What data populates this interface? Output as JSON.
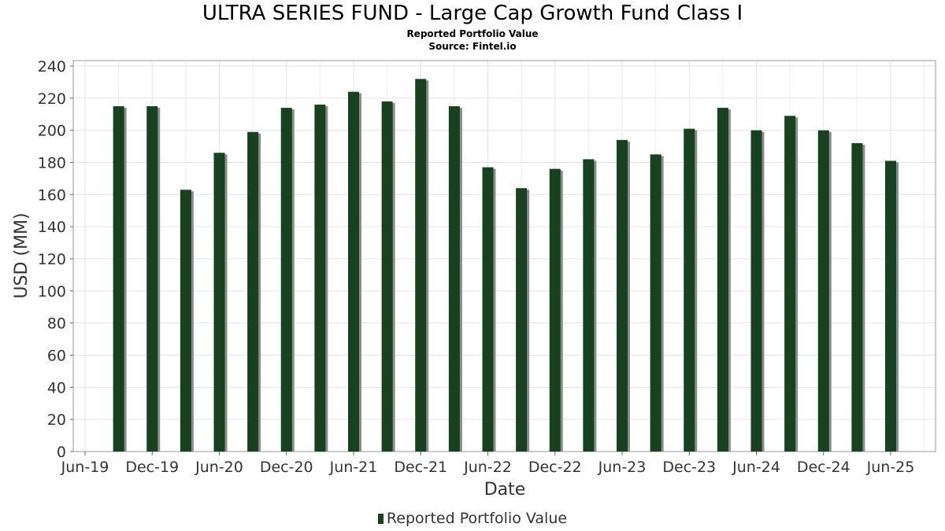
{
  "chart_data": {
    "type": "bar",
    "title": "ULTRA SERIES FUND - Large Cap Growth Fund Class I",
    "subtitle": "Reported Portfolio Value",
    "source": "Source: Fintel.io",
    "xlabel": "Date",
    "ylabel": "USD (MM)",
    "ylim": [
      0,
      240
    ],
    "yticks": [
      0,
      20,
      40,
      60,
      80,
      100,
      120,
      140,
      160,
      180,
      200,
      220,
      240
    ],
    "xticks": [
      "Jun-19",
      "Dec-19",
      "Jun-20",
      "Dec-20",
      "Jun-21",
      "Dec-21",
      "Jun-22",
      "Dec-22",
      "Jun-23",
      "Dec-23",
      "Jun-24",
      "Dec-24",
      "Jun-25"
    ],
    "grid": true,
    "legend_position": "bottom",
    "series": [
      {
        "name": "Reported Portfolio Value",
        "color": "#17411f",
        "x": [
          "2019-09-30",
          "2019-12-31",
          "2020-03-31",
          "2020-06-30",
          "2020-09-30",
          "2020-12-31",
          "2021-03-31",
          "2021-06-30",
          "2021-09-30",
          "2021-12-31",
          "2022-03-31",
          "2022-06-30",
          "2022-09-30",
          "2022-12-31",
          "2023-03-31",
          "2023-06-30",
          "2023-09-30",
          "2023-12-31",
          "2024-03-31",
          "2024-06-30",
          "2024-09-30",
          "2024-12-31",
          "2025-03-31",
          "2025-06-30"
        ],
        "values": [
          215,
          215,
          163,
          186,
          199,
          214,
          216,
          224,
          218,
          232,
          215,
          177,
          164,
          176,
          182,
          194,
          185,
          201,
          214,
          200,
          209,
          200,
          192,
          181
        ]
      }
    ]
  }
}
